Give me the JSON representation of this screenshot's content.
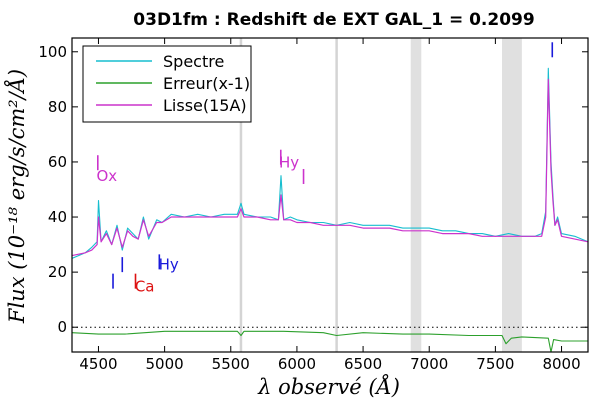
{
  "chart_data": {
    "type": "line",
    "title": "03D1fm : Redshift de EXT GAL_1 = 0.2099",
    "xlabel": "λ observé (Å)",
    "ylabel": "Flux (10⁻¹⁸ erg/s/cm²/Å)",
    "xlim": [
      4300,
      8200
    ],
    "ylim": [
      -9,
      105
    ],
    "xticks": [
      4500,
      5000,
      5500,
      6000,
      6500,
      7000,
      7500,
      8000
    ],
    "yticks": [
      0,
      20,
      40,
      60,
      80,
      100
    ],
    "xtick_labels": [
      "4500",
      "5000",
      "5500",
      "6000",
      "6500",
      "7000",
      "7500",
      "8000"
    ],
    "ytick_labels": [
      "0",
      "20",
      "40",
      "60",
      "80",
      "100"
    ],
    "legend": {
      "placement": "top-left",
      "entries": [
        {
          "label": "Spectre",
          "color": "#17becf"
        },
        {
          "label": "Erreur(x-1)",
          "color": "#2ca02c"
        },
        {
          "label": "Lisse(15A)",
          "color": "#cc33cc"
        }
      ]
    },
    "zero_line": 0,
    "shaded_bands": [
      [
        6860,
        6940
      ],
      [
        7550,
        7700
      ]
    ],
    "sky_lines": [
      5577,
      6300
    ],
    "series": [
      {
        "name": "Spectre",
        "color": "#17becf",
        "x": [
          4300,
          4400,
          4450,
          4490,
          4500,
          4520,
          4560,
          4600,
          4640,
          4680,
          4720,
          4760,
          4800,
          4840,
          4880,
          4940,
          4980,
          5050,
          5150,
          5250,
          5350,
          5450,
          5550,
          5577,
          5600,
          5700,
          5800,
          5860,
          5880,
          5900,
          5950,
          6000,
          6100,
          6200,
          6300,
          6400,
          6500,
          6600,
          6700,
          6800,
          6900,
          7000,
          7100,
          7200,
          7300,
          7400,
          7500,
          7600,
          7700,
          7800,
          7850,
          7880,
          7900,
          7920,
          7935,
          7950,
          7970,
          8000,
          8100,
          8200
        ],
        "y": [
          25,
          27,
          29,
          31,
          46,
          31,
          35,
          30,
          37,
          28,
          36,
          34,
          32,
          40,
          32,
          39,
          38,
          41,
          40,
          41,
          40,
          41,
          41,
          45,
          41,
          40,
          40,
          39,
          55,
          39,
          40,
          39,
          38,
          38,
          37,
          38,
          37,
          37,
          37,
          36,
          36,
          36,
          35,
          35,
          34,
          34,
          33,
          34,
          33,
          33,
          34,
          42,
          94,
          60,
          48,
          37,
          40,
          34,
          33,
          31
        ]
      },
      {
        "name": "Erreur(x-1)",
        "color": "#2ca02c",
        "x": [
          4300,
          4500,
          4700,
          5000,
          5300,
          5550,
          5577,
          5600,
          5900,
          6200,
          6300,
          6500,
          6800,
          7000,
          7300,
          7550,
          7580,
          7620,
          7700,
          7900,
          7920,
          7940,
          8000,
          8200
        ],
        "y": [
          -2,
          -2.5,
          -2.5,
          -1.5,
          -1.5,
          -1.5,
          -3,
          -1.5,
          -1.5,
          -2,
          -3,
          -2,
          -2.5,
          -2.5,
          -3,
          -3,
          -6,
          -4,
          -3.5,
          -4,
          -9,
          -4.5,
          -5,
          -5
        ]
      },
      {
        "name": "Lisse(15A)",
        "color": "#cc33cc",
        "x": [
          4300,
          4400,
          4450,
          4490,
          4500,
          4520,
          4560,
          4600,
          4640,
          4680,
          4720,
          4760,
          4800,
          4840,
          4880,
          4940,
          4980,
          5050,
          5150,
          5250,
          5350,
          5450,
          5550,
          5577,
          5600,
          5700,
          5800,
          5860,
          5880,
          5900,
          5950,
          6000,
          6100,
          6200,
          6300,
          6400,
          6500,
          6600,
          6700,
          6800,
          6900,
          7000,
          7100,
          7200,
          7300,
          7400,
          7500,
          7600,
          7700,
          7800,
          7850,
          7880,
          7900,
          7920,
          7935,
          7950,
          7970,
          8000,
          8100,
          8200
        ],
        "y": [
          26,
          27,
          28,
          30,
          40,
          31,
          34,
          30,
          36,
          29,
          35,
          33,
          32,
          39,
          33,
          38,
          38,
          40,
          40,
          40,
          40,
          40,
          40,
          43,
          40,
          40,
          39,
          39,
          48,
          39,
          39,
          38,
          38,
          37,
          37,
          37,
          36,
          36,
          36,
          35,
          35,
          35,
          34,
          34,
          34,
          33,
          33,
          33,
          33,
          33,
          33,
          40,
          90,
          57,
          46,
          37,
          39,
          33,
          32,
          31
        ]
      }
    ],
    "annotations": [
      {
        "text": "Ox",
        "x": 4500,
        "y": 53,
        "color": "#cc33cc"
      },
      {
        "text": "Hy",
        "x": 5880,
        "y": 58,
        "color": "#cc33cc"
      },
      {
        "text": "Hy",
        "x": 4970,
        "y": 21,
        "color": "#1a1adb"
      },
      {
        "text": "Ca",
        "x": 4790,
        "y": 13,
        "color": "#dd1111"
      }
    ],
    "line_markers": [
      {
        "x": 4495,
        "y": 57,
        "color": "#cc33cc"
      },
      {
        "x": 5878,
        "y": 59,
        "color": "#cc33cc"
      },
      {
        "x": 6050,
        "y": 52,
        "color": "#cc33cc"
      },
      {
        "x": 4610,
        "y": 14,
        "color": "#1a1adb"
      },
      {
        "x": 4680,
        "y": 20,
        "color": "#1a1adb"
      },
      {
        "x": 4780,
        "y": 14,
        "color": "#dd1111"
      },
      {
        "x": 4960,
        "y": 21,
        "color": "#1a1adb"
      },
      {
        "x": 7930,
        "y": 98,
        "color": "#1a1adb"
      }
    ]
  }
}
